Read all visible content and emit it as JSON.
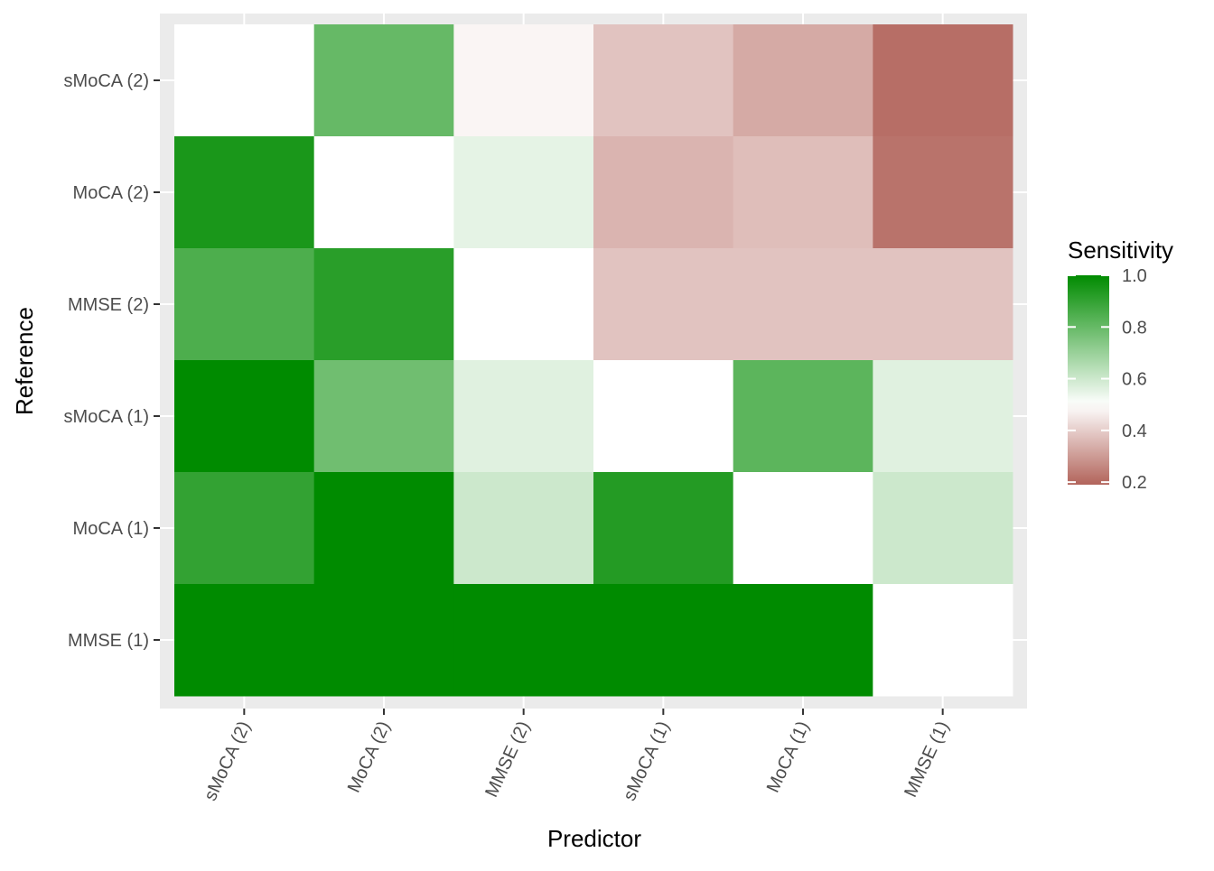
{
  "chart_data": {
    "type": "heatmap",
    "x_label": "Predictor",
    "y_label": "Reference",
    "x": [
      "sMoCA (2)",
      "MoCA (2)",
      "MMSE (2)",
      "sMoCA (1)",
      "MoCA (1)",
      "MMSE (1)"
    ],
    "y": [
      "sMoCA (2)",
      "MoCA (2)",
      "MMSE (2)",
      "sMoCA (1)",
      "MoCA (1)",
      "MMSE (1)"
    ],
    "values": [
      [
        null,
        0.8,
        0.48,
        0.38,
        0.33,
        0.21
      ],
      [
        0.95,
        null,
        0.55,
        0.35,
        0.37,
        0.22
      ],
      [
        0.85,
        0.92,
        null,
        0.38,
        0.38,
        0.38
      ],
      [
        1.0,
        0.78,
        0.56,
        null,
        0.82,
        0.56
      ],
      [
        0.9,
        1.0,
        0.6,
        0.93,
        null,
        0.6
      ],
      [
        1.0,
        1.0,
        1.0,
        1.0,
        1.0,
        null
      ]
    ],
    "legend_title": "Sensitivity",
    "zlim": [
      0.19,
      1.0
    ],
    "midpoint": 0.5,
    "zticks": [
      {
        "value": 1.0,
        "label": "1.0"
      },
      0.8,
      0.6,
      0.4,
      0.2
    ],
    "color_low": "#b2645b",
    "color_mid": "#ffffff",
    "color_high": "#008b00",
    "na_color": "#ffffff",
    "panel_color": "#ebebeb",
    "grid": true
  }
}
